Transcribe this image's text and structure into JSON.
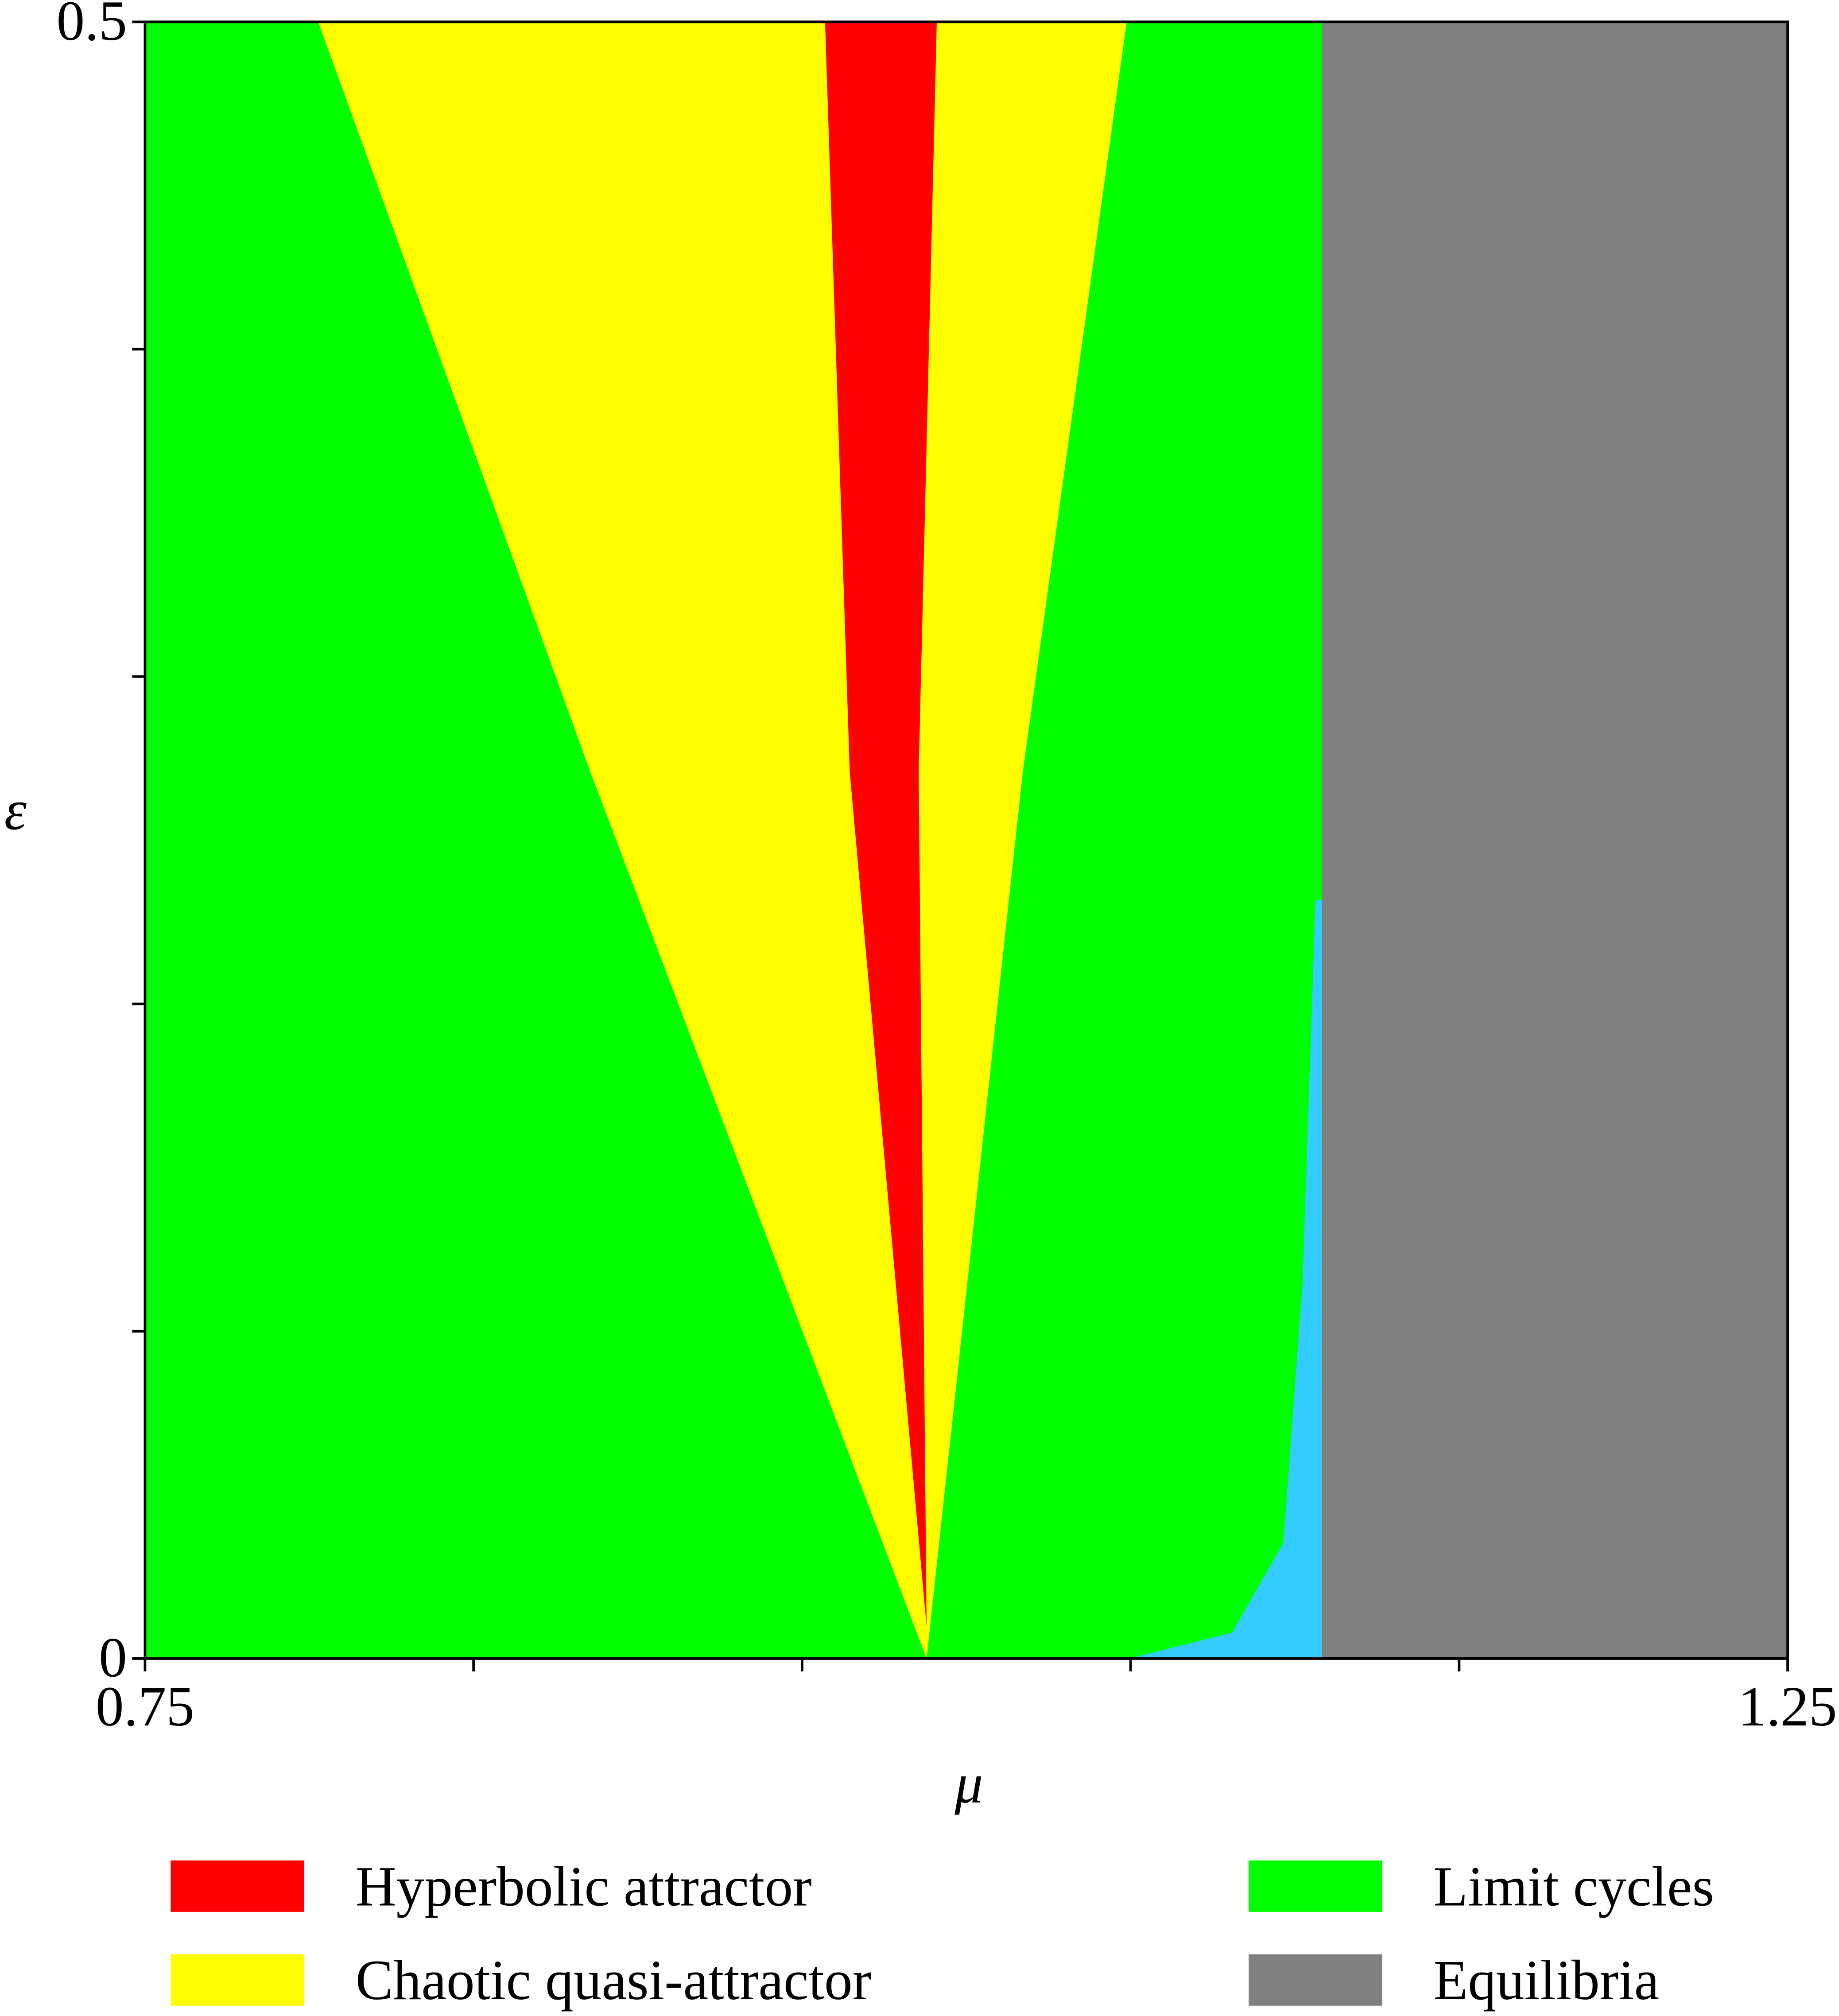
{
  "chart_data": {
    "type": "region-map",
    "xlabel": "μ",
    "ylabel": "ε",
    "xlim": [
      0.75,
      1.25
    ],
    "ylim": [
      0,
      0.5
    ],
    "xticks": [
      0.75,
      {
        "value": 0.85,
        "label": null
      },
      {
        "value": 0.95,
        "label": null
      },
      {
        "value": 1.05,
        "label": null
      },
      {
        "value": 1.15,
        "label": null
      },
      1.25
    ],
    "yticks": [
      0,
      {
        "value": 0.1,
        "label": null
      },
      {
        "value": 0.2,
        "label": null
      },
      {
        "value": 0.3,
        "label": null
      },
      {
        "value": 0.4,
        "label": null
      },
      0.5
    ],
    "regions": [
      {
        "name": "Limit cycles",
        "color": "#00ff00",
        "mu": [
          0.75,
          1.1082,
          1.1082,
          0.75
        ],
        "eps": [
          0,
          0,
          0.5,
          0.5
        ]
      },
      {
        "name": "Equilibria",
        "color": "#808080",
        "mu": [
          1.1082,
          1.25,
          1.25,
          1.1082
        ],
        "eps": [
          0,
          0,
          0.5,
          0.5
        ]
      },
      {
        "name": "Chaotic quasi-attractor",
        "color": "#ffff00",
        "mu": [
          0.8027,
          0.8855,
          0.9879,
          1.0172,
          1.0488
        ],
        "eps": [
          0.5,
          0.271,
          0,
          0.271,
          0.5
        ]
      },
      {
        "name": "Hyperbolic attractor",
        "color": "#ff0000",
        "mu": [
          0.957,
          0.9645,
          0.9879,
          0.9855,
          0.991
        ],
        "eps": [
          0.5,
          0.271,
          0.0098,
          0.271,
          0.5
        ]
      },
      {
        "color": "#33ccff",
        "mu": [
          1.1063,
          1.1082,
          1.1082,
          1.0496,
          1.0809,
          1.0965,
          1.1023
        ],
        "eps": [
          0.2317,
          0.2317,
          0,
          0,
          0.0079,
          0.0353,
          0.1139
        ]
      }
    ]
  }
}
